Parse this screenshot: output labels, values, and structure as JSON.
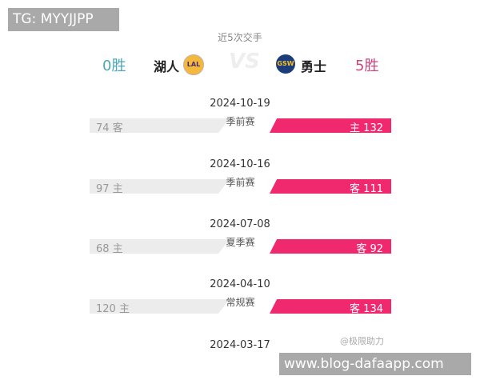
{
  "overlay_tag": "TG: MYYJJPP",
  "header": {
    "subtitle": "近5次交手",
    "vs": "VS",
    "left": {
      "wins": "0胜",
      "team": "湖人",
      "logo": "LAL",
      "wins_color": "#4aa8b8"
    },
    "right": {
      "wins": "5胜",
      "team": "勇士",
      "logo": "GSW",
      "wins_color": "#c8467e"
    }
  },
  "games": [
    {
      "date": "2024-10-19",
      "type": "季前赛",
      "left": "74 客",
      "right": "主 132"
    },
    {
      "date": "2024-10-16",
      "type": "季前赛",
      "left": "97 主",
      "right": "客 111"
    },
    {
      "date": "2024-07-08",
      "type": "夏季赛",
      "left": "68 主",
      "right": "客 92"
    },
    {
      "date": "2024-04-10",
      "type": "常规赛",
      "left": "120 主",
      "right": "客 134"
    },
    {
      "date": "2024-03-17"
    }
  ],
  "watermark": "@极限助力",
  "url_overlay": "www.blog-dafaapp.com",
  "colors": {
    "accent": "#f0286e",
    "loser_bar": "#ececec"
  }
}
